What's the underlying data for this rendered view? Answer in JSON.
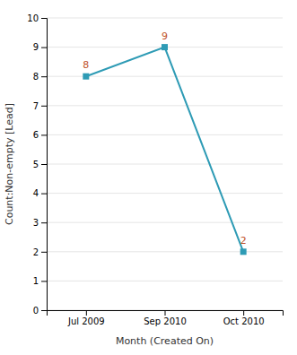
{
  "chart_data": {
    "type": "line",
    "categories": [
      "Jul 2009",
      "Sep 2010",
      "Oct 2010"
    ],
    "values": [
      8,
      9,
      2
    ],
    "color": "#2E9BB5",
    "marker": "square",
    "x_label": "Month (Created On)",
    "y_label": "Count:Non-empty [Lead]",
    "ylim": [
      0,
      10
    ],
    "yticks": [
      0,
      1,
      2,
      3,
      4,
      5,
      6,
      7,
      8,
      9,
      10
    ],
    "grid": true,
    "data_labels": true
  }
}
